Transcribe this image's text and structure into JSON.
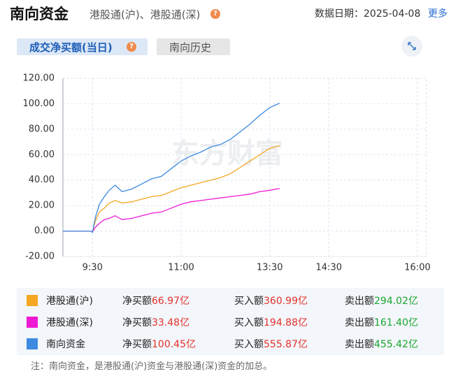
{
  "header": {
    "title": "南向资金",
    "subtitle": "港股通(沪)、港股通(深)",
    "help": "?",
    "date_label": "数据日期：",
    "date": "2025-04-08",
    "more": "更多"
  },
  "tabs": [
    {
      "label": "成交净买额(当日)",
      "help": "?"
    },
    {
      "label": "南向历史"
    }
  ],
  "chart_data": {
    "type": "line",
    "watermark": "东方财富",
    "x": [
      0,
      28,
      30,
      33,
      37,
      42,
      47,
      53,
      60,
      70,
      80,
      90,
      100,
      110,
      120,
      130,
      140,
      150,
      160,
      170,
      180,
      190,
      200,
      210,
      220
    ],
    "xlim": [
      0,
      360
    ],
    "xticks": [
      {
        "value": 30,
        "label": "9:30"
      },
      {
        "value": 120,
        "label": "11:00"
      },
      {
        "value": 210,
        "label": "13:30"
      },
      {
        "value": 270,
        "label": "14:30"
      },
      {
        "value": 360,
        "label": "16:00"
      }
    ],
    "ylim": [
      -20,
      120
    ],
    "yticks": [
      {
        "value": 120,
        "label": "120.00"
      },
      {
        "value": 100,
        "label": "100.00"
      },
      {
        "value": 80,
        "label": "80.00"
      },
      {
        "value": 60,
        "label": "60.00"
      },
      {
        "value": 40,
        "label": "40.00"
      },
      {
        "value": 20,
        "label": "20.00"
      },
      {
        "value": 0,
        "label": "0.00"
      },
      {
        "value": -20,
        "label": "-20.00"
      }
    ],
    "grid": true,
    "series": [
      {
        "name": "港股通(沪)",
        "color": "#f5a623",
        "values": [
          0,
          0,
          -0.5,
          8,
          15,
          18,
          22,
          24,
          22,
          23,
          25,
          27,
          28,
          31,
          34,
          36,
          38,
          40,
          42,
          45,
          50,
          55,
          60,
          65,
          66.97
        ]
      },
      {
        "name": "港股通(深)",
        "color": "#ee1ad4",
        "values": [
          0,
          0,
          -0.5,
          3,
          6,
          9,
          10,
          12,
          9,
          10,
          12,
          14,
          15,
          18,
          21,
          23,
          24,
          25,
          26,
          27,
          28,
          29,
          31,
          32,
          33.48
        ]
      },
      {
        "name": "南向资金",
        "color": "#3d8ae0",
        "values": [
          0,
          0,
          -1,
          11,
          21,
          27,
          32,
          36,
          31,
          33,
          37,
          41,
          43,
          49,
          55,
          59,
          62,
          66,
          68,
          72,
          78,
          84,
          91,
          97,
          100.45
        ]
      }
    ]
  },
  "summary": [
    [
      {
        "label": "净买额",
        "value": "66.97亿"
      },
      {
        "label": "买入额",
        "value": "360.99亿"
      },
      {
        "label": "卖出额",
        "value": "294.02亿"
      }
    ],
    [
      {
        "label": "净买额",
        "value": "33.48亿"
      },
      {
        "label": "买入额",
        "value": "194.88亿"
      },
      {
        "label": "卖出额",
        "value": "161.40亿"
      }
    ],
    [
      {
        "label": "净买额",
        "value": "100.45亿"
      },
      {
        "label": "买入额",
        "value": "555.87亿"
      },
      {
        "label": "卖出额",
        "value": "455.42亿"
      }
    ]
  ],
  "note": "注：南向资金，是港股通(沪)资金与港股通(深)资金的加总。"
}
